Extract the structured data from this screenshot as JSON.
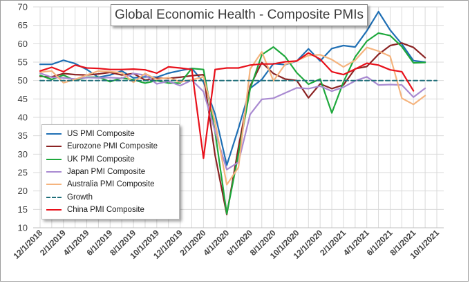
{
  "chart_data": {
    "type": "line",
    "title": "Global Economic Health - Composite PMIs",
    "xlabel": "",
    "ylabel": "",
    "ylim": [
      10,
      70
    ],
    "yticks": [
      10,
      15,
      20,
      25,
      30,
      35,
      40,
      45,
      50,
      55,
      60,
      65,
      70
    ],
    "x": [
      "12/1/2018",
      "1/1/2019",
      "2/1/2019",
      "3/1/2019",
      "4/1/2019",
      "5/1/2019",
      "6/1/2019",
      "7/1/2019",
      "8/1/2019",
      "9/1/2019",
      "10/1/2019",
      "11/1/2019",
      "12/1/2019",
      "1/1/2020",
      "2/1/2020",
      "3/1/2020",
      "4/1/2020",
      "5/1/2020",
      "6/1/2020",
      "7/1/2020",
      "8/1/2020",
      "9/1/2020",
      "10/1/2020",
      "11/1/2020",
      "12/1/2020",
      "1/1/2021",
      "2/1/2021",
      "3/1/2021",
      "4/1/2021",
      "5/1/2021",
      "6/1/2021",
      "7/1/2021",
      "8/1/2021",
      "9/1/2021",
      "10/1/2021"
    ],
    "xtick_labels": [
      "12/1/2018",
      "2/1/2019",
      "4/1/2019",
      "6/1/2019",
      "8/1/2019",
      "10/1/2019",
      "12/1/2019",
      "2/1/2020",
      "4/1/2020",
      "6/1/2020",
      "8/1/2020",
      "10/1/2020",
      "12/1/2020",
      "2/1/2021",
      "4/1/2021",
      "6/1/2021",
      "8/1/2021",
      "10/1/2021"
    ],
    "grid": true,
    "legend_position": "bottom-left",
    "series": [
      {
        "name": "US PMI Composite",
        "color": "#1f6fb4",
        "dash": "solid",
        "values": [
          54.4,
          54.4,
          55.5,
          54.6,
          53.0,
          50.9,
          51.5,
          52.6,
          50.7,
          51.0,
          50.9,
          52.0,
          52.7,
          53.3,
          49.6,
          40.9,
          27.0,
          37.0,
          47.9,
          50.3,
          54.6,
          54.3,
          55.3,
          58.6,
          55.3,
          58.7,
          59.5,
          59.1,
          63.5,
          68.7,
          63.7,
          59.9,
          55.4,
          55.0,
          null
        ]
      },
      {
        "name": "Eurozone PMI Composite",
        "color": "#8b2323",
        "dash": "solid",
        "values": [
          51.1,
          51.0,
          51.9,
          51.6,
          51.5,
          51.8,
          52.2,
          51.5,
          51.9,
          50.1,
          50.6,
          50.6,
          50.9,
          51.3,
          51.6,
          29.7,
          13.6,
          31.9,
          48.5,
          54.9,
          51.9,
          50.4,
          50.0,
          45.3,
          49.1,
          47.8,
          48.8,
          53.2,
          53.8,
          57.1,
          59.5,
          60.2,
          59.0,
          56.2,
          null
        ]
      },
      {
        "name": "UK PMI Composite",
        "color": "#1ea83c",
        "dash": "solid",
        "values": [
          51.4,
          50.3,
          51.5,
          50.0,
          50.9,
          50.9,
          49.7,
          50.7,
          50.2,
          49.3,
          50.0,
          49.3,
          49.3,
          53.3,
          53.0,
          36.0,
          13.8,
          30.0,
          47.7,
          57.0,
          59.1,
          56.5,
          52.1,
          49.0,
          50.4,
          41.2,
          49.6,
          56.4,
          60.7,
          62.9,
          62.2,
          59.2,
          54.8,
          54.9,
          null
        ]
      },
      {
        "name": "Japan PMI Composite",
        "color": "#a98ad1",
        "dash": "solid",
        "values": [
          52.0,
          50.9,
          50.7,
          50.4,
          50.8,
          50.7,
          50.8,
          50.6,
          51.9,
          51.5,
          49.1,
          49.8,
          48.6,
          50.1,
          47.0,
          36.2,
          25.8,
          27.8,
          40.8,
          44.9,
          45.2,
          46.6,
          48.0,
          47.8,
          48.5,
          47.1,
          48.2,
          49.9,
          51.0,
          48.8,
          48.9,
          48.8,
          45.5,
          47.9,
          null
        ]
      },
      {
        "name": "Australia PMI Composite",
        "color": "#f5b47e",
        "dash": "solid",
        "values": [
          52.3,
          52.6,
          49.4,
          50.3,
          51.5,
          52.6,
          52.4,
          52.1,
          49.5,
          51.9,
          50.3,
          50.8,
          49.6,
          50.2,
          51.0,
          38.7,
          21.7,
          26.4,
          53.1,
          57.8,
          49.9,
          54.4,
          55.4,
          56.8,
          57.0,
          55.7,
          53.7,
          55.5,
          59.0,
          58.0,
          56.6,
          45.2,
          43.5,
          45.9,
          null
        ]
      },
      {
        "name": "Growth",
        "color": "#1f6f7a",
        "dash": "dashed",
        "values": [
          50,
          50,
          50,
          50,
          50,
          50,
          50,
          50,
          50,
          50,
          50,
          50,
          50,
          50,
          50,
          50,
          50,
          50,
          50,
          50,
          50,
          50,
          50,
          50,
          50,
          50,
          50,
          50,
          50,
          50,
          50,
          50,
          50,
          50,
          50
        ]
      },
      {
        "name": "China PMI Composite",
        "color": "#e8101a",
        "dash": "solid",
        "values": [
          52.6,
          53.6,
          52.4,
          54.2,
          53.4,
          53.3,
          53.0,
          53.0,
          53.1,
          52.9,
          52.0,
          53.7,
          53.4,
          53.0,
          28.9,
          53.0,
          53.4,
          53.4,
          54.2,
          54.5,
          54.5,
          55.1,
          55.3,
          57.5,
          55.8,
          52.4,
          51.6,
          53.1,
          54.7,
          54.2,
          52.9,
          52.4,
          47.2,
          null,
          null
        ]
      }
    ]
  }
}
